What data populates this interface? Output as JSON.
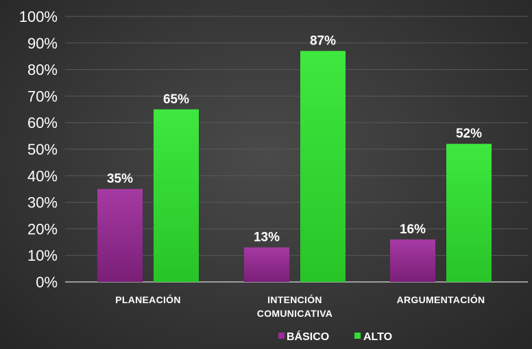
{
  "chart_data": {
    "type": "bar",
    "categories": [
      "PLANEACIÓN",
      "INTENCIÓN COMUNICATIVA",
      "ARGUMENTACIÓN"
    ],
    "category_lines": [
      [
        "PLANEACIÓN"
      ],
      [
        "INTENCIÓN",
        "COMUNICATIVA"
      ],
      [
        "ARGUMENTACIÓN"
      ]
    ],
    "series": [
      {
        "name": "BÁSICO",
        "values": [
          35,
          13,
          16
        ],
        "labels": [
          "35%",
          "13%",
          "16%"
        ],
        "color": "#9b2a9a"
      },
      {
        "name": "ALTO",
        "values": [
          65,
          87,
          52
        ],
        "labels": [
          "65%",
          "87%",
          "52%"
        ],
        "color": "#33dd33"
      }
    ],
    "ylim": [
      0,
      100
    ],
    "yticks": [
      0,
      10,
      20,
      30,
      40,
      50,
      60,
      70,
      80,
      90,
      100
    ],
    "ytick_labels": [
      "0%",
      "10%",
      "20%",
      "30%",
      "40%",
      "50%",
      "60%",
      "70%",
      "80%",
      "90%",
      "100%"
    ],
    "grid": true,
    "legend_position": "bottom",
    "title": "",
    "xlabel": "",
    "ylabel": ""
  }
}
